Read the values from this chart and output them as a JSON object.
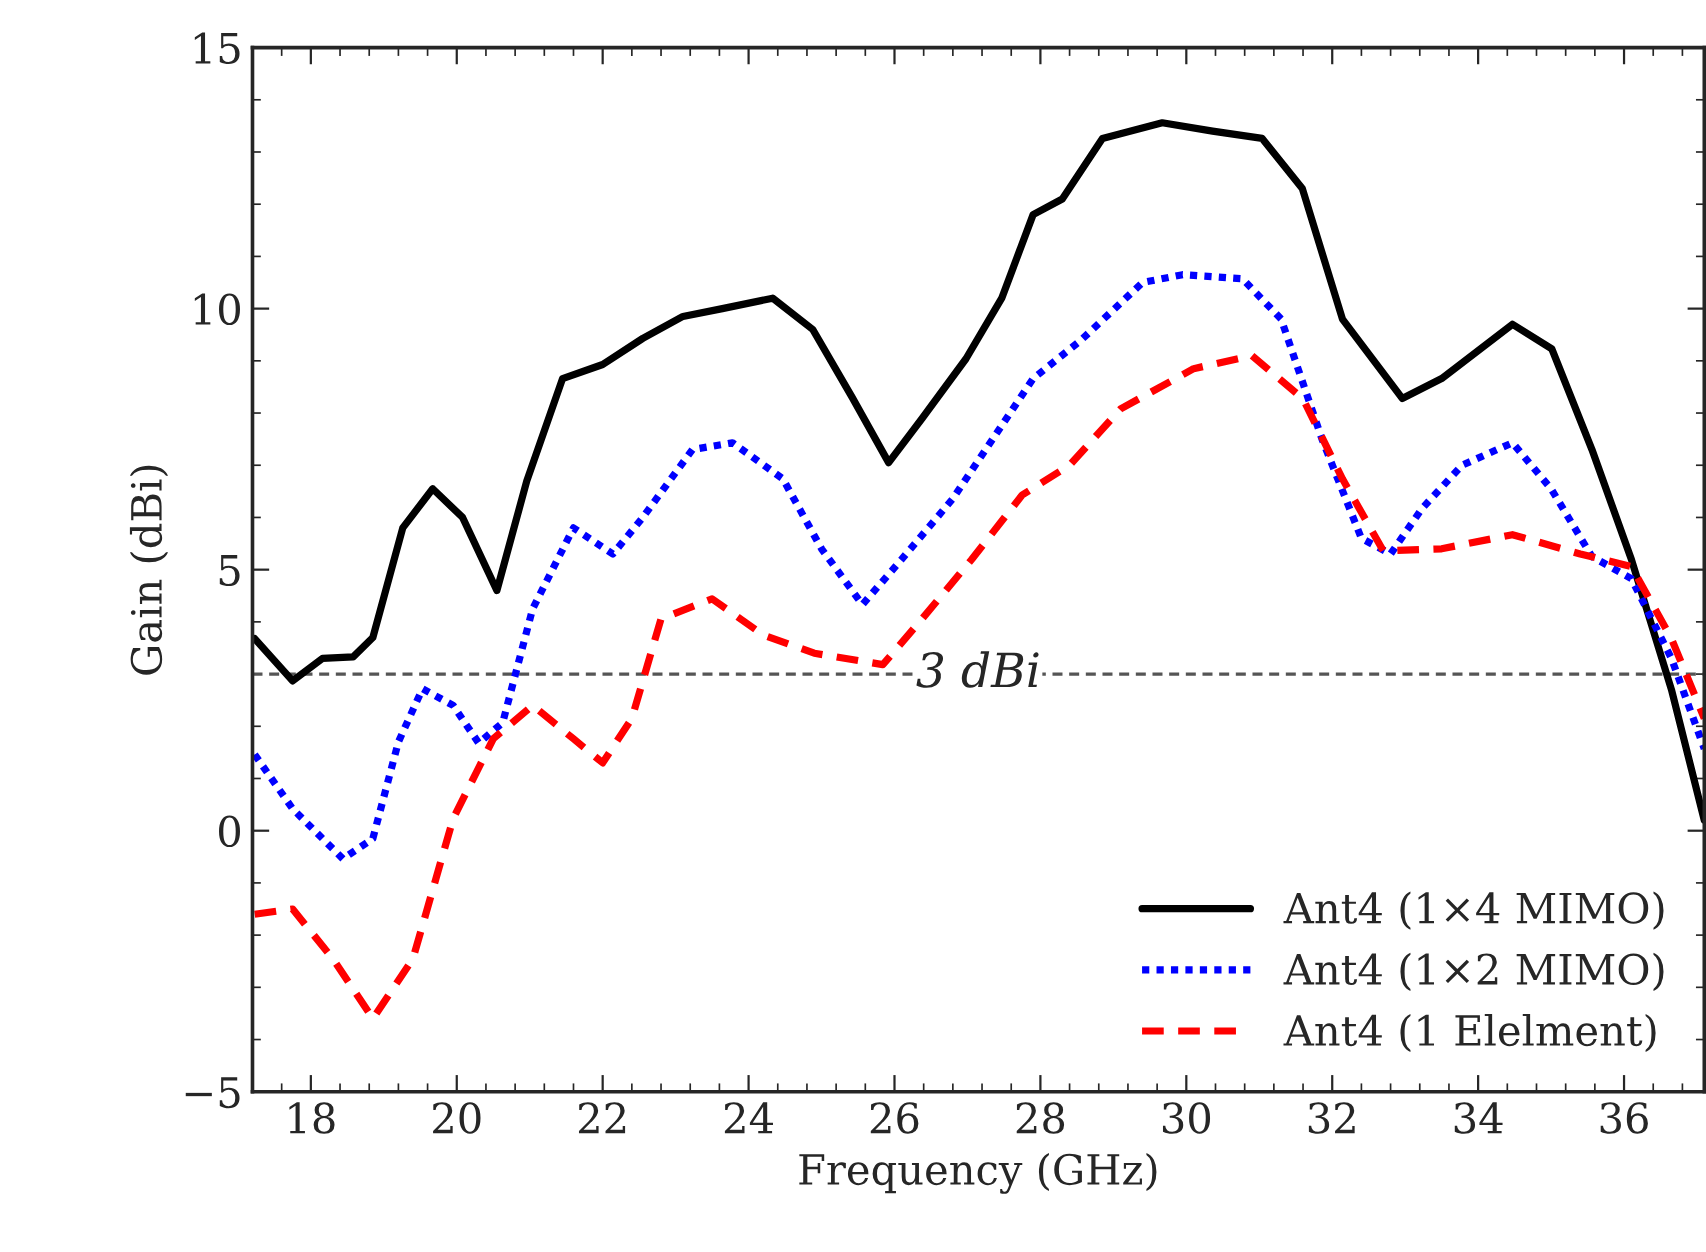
{
  "chart_data": {
    "type": "line",
    "xlabel": "Frequency (GHz)",
    "ylabel": "Gain (dBi)",
    "xlim": [
      17.2,
      37.1
    ],
    "xticks": [
      18,
      20,
      22,
      24,
      26,
      28,
      30,
      32,
      34,
      36
    ],
    "ylim": [
      -5,
      15
    ],
    "yticks": [
      -5,
      0,
      5,
      10,
      15
    ],
    "grid": false,
    "legend": "bottom right",
    "ref_lines": [
      {
        "axis": "y",
        "value": 3,
        "label": "3 dBi",
        "color": "#555555",
        "line_style": "dashed"
      }
    ],
    "series": [
      {
        "name": "Ant4 (1×4 MIMO)",
        "color": "#000000",
        "line_style": "solid",
        "x": [
          17.23,
          17.75,
          18.16,
          18.58,
          18.85,
          19.26,
          19.67,
          20.08,
          20.55,
          20.96,
          21.45,
          22.0,
          22.55,
          23.1,
          23.64,
          24.33,
          24.88,
          25.42,
          25.92,
          26.38,
          26.98,
          27.47,
          27.9,
          28.3,
          28.85,
          29.67,
          30.36,
          31.04,
          31.59,
          32.14,
          32.96,
          33.5,
          34.47,
          35.01,
          35.56,
          36.1,
          36.65,
          37.1
        ],
        "values": [
          3.68,
          2.87,
          3.3,
          3.33,
          3.7,
          5.8,
          6.55,
          6.0,
          4.6,
          6.7,
          8.66,
          8.93,
          9.43,
          9.85,
          10.0,
          10.2,
          9.6,
          8.3,
          7.05,
          7.9,
          9.04,
          10.2,
          11.8,
          12.1,
          13.26,
          13.56,
          13.4,
          13.26,
          12.3,
          9.8,
          8.28,
          8.66,
          9.7,
          9.23,
          7.3,
          5.2,
          2.7,
          0.2
        ]
      },
      {
        "name": "Ant4 (1×2 MIMO)",
        "color": "#0000ff",
        "line_style": "dotted",
        "x": [
          17.23,
          17.75,
          18.44,
          18.85,
          19.2,
          19.53,
          19.95,
          20.3,
          20.63,
          21.04,
          21.6,
          22.14,
          22.55,
          23.23,
          23.78,
          24.47,
          25.0,
          25.56,
          26.1,
          26.8,
          27.9,
          28.56,
          29.4,
          29.95,
          30.77,
          31.3,
          31.86,
          32.4,
          32.8,
          33.23,
          33.78,
          34.47,
          35.0,
          35.56,
          36.1,
          36.65,
          37.1
        ],
        "values": [
          1.46,
          0.42,
          -0.54,
          -0.15,
          1.7,
          2.72,
          2.4,
          1.68,
          2.07,
          4.25,
          5.8,
          5.3,
          6.0,
          7.3,
          7.43,
          6.74,
          5.4,
          4.33,
          5.2,
          6.36,
          8.66,
          9.4,
          10.5,
          10.65,
          10.57,
          9.8,
          7.5,
          5.6,
          5.3,
          6.17,
          7.0,
          7.43,
          6.55,
          5.25,
          4.83,
          3.3,
          1.57
        ]
      },
      {
        "name": "Ant4 (1 Elelment)",
        "color": "#ff0000",
        "line_style": "dashed",
        "x": [
          17.23,
          17.75,
          18.3,
          18.85,
          19.4,
          19.95,
          20.5,
          21.04,
          21.6,
          22.0,
          22.4,
          22.8,
          23.5,
          24.2,
          24.9,
          25.84,
          26.38,
          27.06,
          27.75,
          28.4,
          29.1,
          30.1,
          30.9,
          31.6,
          32.14,
          32.7,
          33.5,
          34.47,
          35.4,
          36.1,
          36.65,
          37.1
        ],
        "values": [
          -1.6,
          -1.5,
          -2.45,
          -3.6,
          -2.45,
          0.23,
          1.76,
          2.4,
          1.76,
          1.3,
          2.15,
          4.06,
          4.44,
          3.75,
          3.4,
          3.18,
          4.06,
          5.2,
          6.43,
          7.0,
          8.08,
          8.85,
          9.1,
          8.27,
          6.74,
          5.36,
          5.4,
          5.67,
          5.3,
          5.06,
          3.68,
          2.15
        ]
      }
    ]
  }
}
